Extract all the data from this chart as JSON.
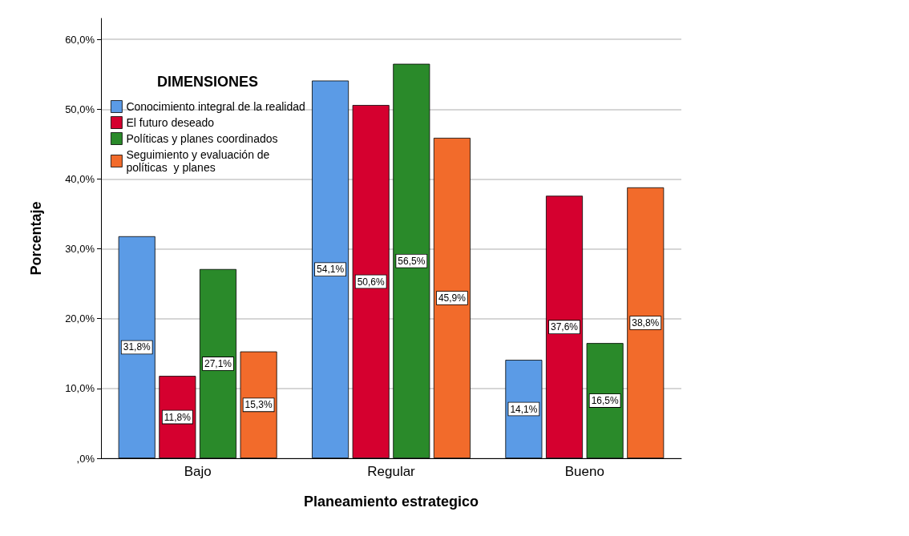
{
  "chart_data": {
    "type": "bar",
    "xlabel": "Planeamiento estrategico",
    "ylabel": "Porcentaje",
    "legend_title": "DIMENSIONES",
    "categories": [
      "Bajo",
      "Regular",
      "Bueno"
    ],
    "series": [
      {
        "name": "Conocimiento integral de la realidad",
        "color": "#5b9be6",
        "values": [
          31.8,
          54.1,
          14.1
        ],
        "value_labels": [
          "31,8%",
          "54,1%",
          "14,1%"
        ]
      },
      {
        "name": "El futuro deseado",
        "color": "#d5002f",
        "values": [
          11.8,
          50.6,
          37.6
        ],
        "value_labels": [
          "11,8%",
          "50,6%",
          "37,6%"
        ]
      },
      {
        "name": "Políticas y planes coordinados",
        "color": "#2a8a2a",
        "values": [
          27.1,
          56.5,
          16.5
        ],
        "value_labels": [
          "27,1%",
          "56,5%",
          "16,5%"
        ]
      },
      {
        "name": "Seguimiento y evaluación de políticas  y planes",
        "color": "#f26b2b",
        "values": [
          15.3,
          45.9,
          38.8
        ],
        "value_labels": [
          "15,3%",
          "45,9%",
          "38,8%"
        ]
      }
    ],
    "ylim": [
      0,
      63
    ],
    "yticks": [
      {
        "value": 0,
        "label": ",0%"
      },
      {
        "value": 10,
        "label": "10,0%"
      },
      {
        "value": 20,
        "label": "20,0%"
      },
      {
        "value": 30,
        "label": "30,0%"
      },
      {
        "value": 40,
        "label": "40,0%"
      },
      {
        "value": 50,
        "label": "50,0%"
      },
      {
        "value": 60,
        "label": "60,0%"
      }
    ],
    "grid": "y",
    "legend": "top left"
  }
}
